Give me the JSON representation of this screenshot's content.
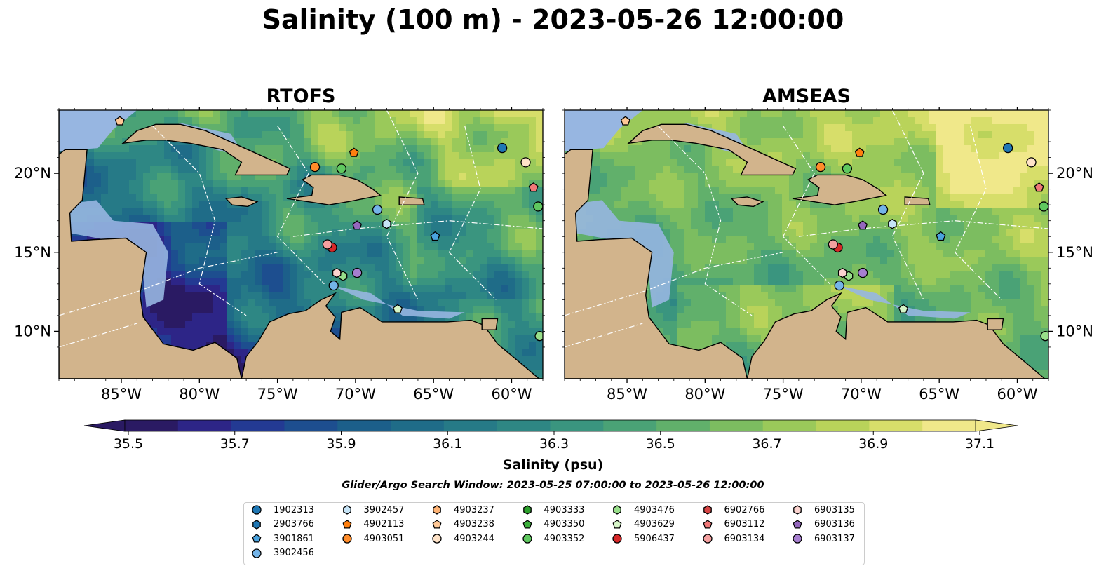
{
  "figure": {
    "title": "Salinity (100 m) - 2023-05-26 12:00:00",
    "search_window": "Glider/Argo Search Window: 2023-05-25 07:00:00 to 2023-05-26 12:00:00"
  },
  "colors": {
    "land": "#d2b48c",
    "ocean_shallow": "#97b6e1",
    "coast": "#000000",
    "colormap": [
      "#2a1a63",
      "#2d2587",
      "#233a93",
      "#1d4e8f",
      "#1c5f8a",
      "#1f6c88",
      "#267a87",
      "#2e8784",
      "#3a957f",
      "#4aa276",
      "#61b06b",
      "#7cbd60",
      "#9ac95a",
      "#b9d35a",
      "#d7de6a",
      "#f0e88a"
    ]
  },
  "chart_data": [
    {
      "type": "heatmap",
      "title": "RTOFS",
      "variable": "salinity",
      "depth": "100 m",
      "x_extent_lon": [
        -89,
        -58
      ],
      "y_extent_lat": [
        7,
        24
      ],
      "xticks": [
        "85°W",
        "80°W",
        "75°W",
        "70°W",
        "65°W",
        "60°W"
      ],
      "yticks": [
        "20°N",
        "15°N",
        "10°N"
      ],
      "ytick_side": "left",
      "predominant_salinity": "low (35.6–36.1) in western Caribbean, high (36.5–37.1) north and east"
    },
    {
      "type": "heatmap",
      "title": "AMSEAS",
      "variable": "salinity",
      "depth": "100 m",
      "x_extent_lon": [
        -89,
        -58
      ],
      "y_extent_lat": [
        7,
        24
      ],
      "xticks": [
        "85°W",
        "80°W",
        "75°W",
        "70°W",
        "65°W",
        "60°W"
      ],
      "yticks": [
        "20°N",
        "15°N",
        "10°N"
      ],
      "ytick_side": "right",
      "predominant_salinity": "moderate (36.3–36.9) across basin, higher near Venezuela coast"
    }
  ],
  "colorbar": {
    "label": "Salinity (psu)",
    "vmin": 35.5,
    "vmax": 37.1,
    "extend": "both",
    "ticks": [
      "35.5",
      "35.7",
      "35.9",
      "36.1",
      "36.3",
      "36.5",
      "36.7",
      "36.9",
      "37.1"
    ]
  },
  "observations": [
    {
      "id": "1902313",
      "marker": "circle",
      "color": "#1f77b4",
      "lon": -60.6,
      "lat": 21.6
    },
    {
      "id": "2903766",
      "marker": "hexagon",
      "color": "#1f77b4",
      "lon": null,
      "lat": null
    },
    {
      "id": "3901861",
      "marker": "pentagon",
      "color": "#4aa3df",
      "lon": -64.9,
      "lat": 16.0
    },
    {
      "id": "3902456",
      "marker": "circle",
      "color": "#74b4e8",
      "lon": -68.6,
      "lat": 17.7
    },
    {
      "id": "3902457",
      "marker": "hexagon",
      "color": "#c6e4f7",
      "lon": -68.0,
      "lat": 16.8
    },
    {
      "id": "4902113",
      "marker": "pentagon",
      "color": "#ff7f0e",
      "lon": -70.1,
      "lat": 21.3
    },
    {
      "id": "4903051",
      "marker": "circle",
      "color": "#ff8c2a",
      "lon": -72.6,
      "lat": 20.4
    },
    {
      "id": "4903237",
      "marker": "hexagon",
      "color": "#ffb374",
      "lon": null,
      "lat": null
    },
    {
      "id": "4903238",
      "marker": "pentagon",
      "color": "#ffc896",
      "lon": -85.1,
      "lat": 23.3
    },
    {
      "id": "4903244",
      "marker": "circle",
      "color": "#ffe3c8",
      "lon": -59.1,
      "lat": 20.7
    },
    {
      "id": "4903333",
      "marker": "hexagon",
      "color": "#2ca02c",
      "lon": null,
      "lat": null
    },
    {
      "id": "4903350",
      "marker": "pentagon",
      "color": "#3cb03c",
      "lon": null,
      "lat": null
    },
    {
      "id": "4903352",
      "marker": "circle",
      "color": "#5fc85f",
      "lon": -70.9,
      "lat": 20.3
    },
    {
      "id": "4903476",
      "marker": "hexagon",
      "color": "#98df8a",
      "lon": -70.8,
      "lat": 13.5
    },
    {
      "id": "4903629",
      "marker": "pentagon",
      "color": "#d6f5c8",
      "lon": -67.3,
      "lat": 11.4
    },
    {
      "id": "5906437",
      "marker": "circle",
      "color": "#d62728",
      "lon": -71.5,
      "lat": 15.3
    },
    {
      "id": "6902766",
      "marker": "hexagon",
      "color": "#d64545",
      "lon": null,
      "lat": null
    },
    {
      "id": "6903112",
      "marker": "pentagon",
      "color": "#f07878",
      "lon": -58.6,
      "lat": 19.1
    },
    {
      "id": "6903134",
      "marker": "circle",
      "color": "#f4a0a0",
      "lon": -71.8,
      "lat": 15.5
    },
    {
      "id": "6903135",
      "marker": "hexagon",
      "color": "#fbd3cf",
      "lon": -71.2,
      "lat": 13.7
    },
    {
      "id": "6903136",
      "marker": "pentagon",
      "color": "#9467bd",
      "lon": -69.9,
      "lat": 16.7
    },
    {
      "id": "6903137",
      "marker": "circle",
      "color": "#a77fd0",
      "lon": -69.9,
      "lat": 13.7
    },
    {
      "id": "extra-1",
      "marker": "circle",
      "color": "#5fc85f",
      "lon": -58.3,
      "lat": 17.9
    },
    {
      "id": "extra-2",
      "marker": "circle",
      "color": "#98df8a",
      "lon": -58.2,
      "lat": 9.7
    },
    {
      "id": "extra-3",
      "marker": "circle",
      "color": "#74b4e8",
      "lon": -71.4,
      "lat": 12.9
    }
  ],
  "legend": {
    "items": [
      "1902313",
      "2903766",
      "3901861",
      "3902456",
      "3902457",
      "4902113",
      "4903051",
      "4903237",
      "4903238",
      "4903244",
      "4903333",
      "4903350",
      "4903352",
      "4903476",
      "4903629",
      "5906437",
      "6902766",
      "6903112",
      "6903134",
      "6903135",
      "6903136",
      "6903137"
    ]
  }
}
